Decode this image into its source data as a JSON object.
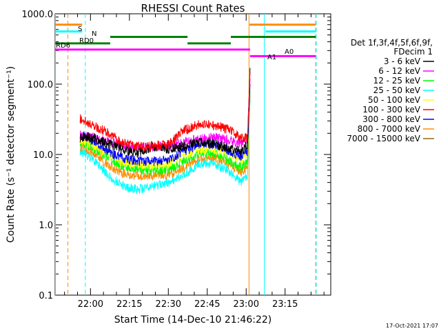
{
  "chart_data": {
    "type": "line",
    "title": "RHESSI Count Rates",
    "xlabel": "Start Time (14-Dec-10 21:46:22)",
    "ylabel": "Count Rate (s⁻¹ detector segment⁻¹)",
    "yscale": "log",
    "ylim": [
      0.1,
      1000
    ],
    "xlim_min": [
      46.37,
      152.6
    ],
    "x_unit": "minutes after 21:00 UT",
    "ytick_labels": [
      "0.1",
      "1.0",
      "10.0",
      "100.0",
      "1000.0"
    ],
    "ytick_values": [
      0.1,
      1,
      10,
      100,
      1000
    ],
    "xtick_labels": [
      "22:00",
      "22:15",
      "22:30",
      "22:45",
      "23:00",
      "23:15"
    ],
    "xtick_values": [
      60,
      75,
      90,
      105,
      120,
      135
    ],
    "legend_header": [
      "Det 1f,3f,4f,5f,6f,9f,",
      "FDecim 1"
    ],
    "series": [
      {
        "name": "3 - 6 keV",
        "color": "#000000",
        "x": [
          56,
          58,
          62,
          67,
          72,
          78,
          84,
          90,
          96,
          102,
          108,
          114,
          118,
          120.5,
          121.5
        ],
        "y": [
          17,
          18,
          17,
          14,
          12,
          10.5,
          13,
          12,
          13,
          15,
          14,
          12,
          11,
          14,
          170
        ]
      },
      {
        "name": "6 - 12 keV",
        "color": "#ff00ff",
        "x": [
          56,
          58,
          62,
          67,
          72,
          78,
          84,
          90,
          96,
          102,
          108,
          114,
          118,
          120.5,
          121.5
        ],
        "y": [
          19,
          18,
          17,
          15,
          14,
          12.5,
          13,
          13,
          15,
          16.5,
          17.5,
          16,
          14,
          16,
          120
        ]
      },
      {
        "name": "12 - 25 keV",
        "color": "#00ff00",
        "x": [
          56,
          58,
          62,
          67,
          72,
          78,
          84,
          90,
          96,
          102,
          108,
          114,
          118,
          120.5,
          121.5
        ],
        "y": [
          15,
          14,
          12,
          9,
          7,
          6,
          6,
          6,
          8,
          10.5,
          10,
          8,
          6.5,
          8,
          80
        ]
      },
      {
        "name": "25 - 50 keV",
        "color": "#00ffff",
        "x": [
          56,
          58,
          62,
          67,
          72,
          78,
          84,
          90,
          96,
          102,
          108,
          114,
          118,
          120.5,
          121.5
        ],
        "y": [
          11,
          10,
          8,
          5,
          3.6,
          3.2,
          3.5,
          4,
          5,
          7.5,
          7.5,
          5.5,
          4,
          5,
          60
        ]
      },
      {
        "name": "50 - 100 keV",
        "color": "#ffff00",
        "x": [
          56,
          58,
          62,
          67,
          72,
          78,
          84,
          90,
          96,
          102,
          108,
          114,
          118,
          120.5,
          121.5
        ],
        "y": [
          16,
          15,
          13,
          10,
          8,
          7,
          7,
          7.5,
          9.5,
          12,
          12,
          10,
          8.5,
          10,
          90
        ]
      },
      {
        "name": "100 - 300 keV",
        "color": "#ff0000",
        "x": [
          56,
          58,
          62,
          67,
          72,
          78,
          84,
          90,
          96,
          102,
          108,
          114,
          118,
          120.5,
          121.5
        ],
        "y": [
          32,
          30,
          25,
          20,
          15,
          13,
          13,
          14,
          22,
          27,
          26,
          22,
          17,
          18,
          150
        ]
      },
      {
        "name": "300 - 800 keV",
        "color": "#0000ff",
        "x": [
          56,
          58,
          62,
          67,
          72,
          78,
          84,
          90,
          96,
          102,
          108,
          114,
          118,
          120.5,
          121.5
        ],
        "y": [
          19,
          18,
          15,
          11,
          9,
          8,
          8,
          8.5,
          11,
          14,
          14,
          11,
          9.5,
          11,
          100
        ]
      },
      {
        "name": "800 - 7000 keV",
        "color": "#ff8c00",
        "x": [
          56,
          58,
          62,
          67,
          72,
          78,
          84,
          90,
          96,
          102,
          108,
          114,
          118,
          120.5,
          121.5
        ],
        "y": [
          13,
          12,
          10,
          7,
          5.5,
          5,
          5,
          5.2,
          6.5,
          9,
          9,
          7,
          5.5,
          6.5,
          70
        ]
      },
      {
        "name": "7000 - 15000 keV",
        "color": "#8b6914",
        "x": [],
        "y": []
      }
    ],
    "attenuator_bars": [
      {
        "label": "S",
        "color": "#ff8c00",
        "value": 700,
        "segments": [
          [
            46.4,
            56.8
          ],
          [
            121.3,
            146.8
          ]
        ]
      },
      {
        "label": "N",
        "color": "#00ffff",
        "value": 560,
        "segments": [
          [
            46.4,
            56.8
          ],
          [
            127.4,
            146.8
          ]
        ]
      },
      {
        "label": "RD0",
        "color": "#008000",
        "value": 470,
        "segments": [
          [
            67.6,
            97.4
          ],
          [
            114.1,
            146.8
          ]
        ]
      },
      {
        "label": "RD6",
        "color": "#008000",
        "value": 380,
        "segments": [
          [
            46.4,
            67.6
          ],
          [
            97.4,
            114.1
          ]
        ]
      },
      {
        "label": "A1",
        "color": "#ff00ff",
        "value": 310,
        "segments": [
          [
            46.4,
            121.5
          ]
        ]
      },
      {
        "label": "A0",
        "color": "#ff00ff",
        "value": 250,
        "segments": [
          [
            121.5,
            146.8
          ]
        ]
      }
    ],
    "vertical_markers": [
      {
        "x": 46.5,
        "color": "#00ffff",
        "style": "solid"
      },
      {
        "x": 51.3,
        "color": "#ff8c00",
        "style": "dashed"
      },
      {
        "x": 58.0,
        "color": "#00ffff",
        "style": "dashed"
      },
      {
        "x": 121.1,
        "color": "#ff8c00",
        "style": "solid"
      },
      {
        "x": 127.0,
        "color": "#00ffff",
        "style": "solid"
      },
      {
        "x": 146.8,
        "color": "#ff8c00",
        "style": "dashed"
      },
      {
        "x": 147.0,
        "color": "#00ffff",
        "style": "dashed"
      }
    ],
    "footer_date": "17-Oct-2021 17:07"
  }
}
